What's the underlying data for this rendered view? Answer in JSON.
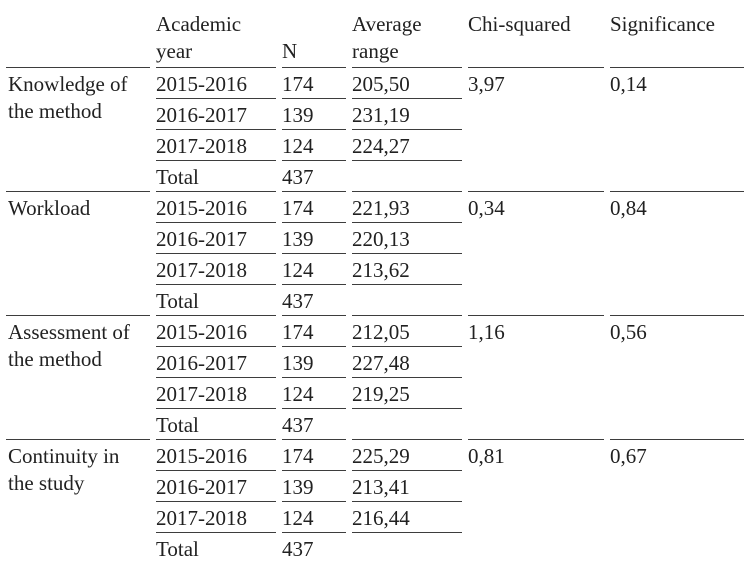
{
  "table": {
    "headers": {
      "row_label": "",
      "academic_year": "Academic year",
      "n": "N",
      "average_range": "Average range",
      "chi_squared": "Chi-squared",
      "significance": "Significance"
    },
    "sections": [
      {
        "label": "Knowledge of the method",
        "rows": [
          {
            "year": "2015-2016",
            "n": "174",
            "avg": "205,50"
          },
          {
            "year": "2016-2017",
            "n": "139",
            "avg": "231,19"
          },
          {
            "year": "2017-2018",
            "n": "124",
            "avg": "224,27"
          }
        ],
        "total_label": "Total",
        "total_n": "437",
        "chi": "3,97",
        "sig": "0,14"
      },
      {
        "label": "Workload",
        "rows": [
          {
            "year": "2015-2016",
            "n": "174",
            "avg": "221,93"
          },
          {
            "year": "2016-2017",
            "n": "139",
            "avg": "220,13"
          },
          {
            "year": "2017-2018",
            "n": "124",
            "avg": "213,62"
          }
        ],
        "total_label": "Total",
        "total_n": "437",
        "chi": "0,34",
        "sig": "0,84"
      },
      {
        "label": "Assessment of the method",
        "rows": [
          {
            "year": "2015-2016",
            "n": "174",
            "avg": "212,05"
          },
          {
            "year": "2016-2017",
            "n": "139",
            "avg": "227,48"
          },
          {
            "year": "2017-2018",
            "n": "124",
            "avg": "219,25"
          }
        ],
        "total_label": "Total",
        "total_n": "437",
        "chi": "1,16",
        "sig": "0,56"
      },
      {
        "label": "Continuity in the study",
        "rows": [
          {
            "year": "2015-2016",
            "n": "174",
            "avg": "225,29"
          },
          {
            "year": "2016-2017",
            "n": "139",
            "avg": "213,41"
          },
          {
            "year": "2017-2018",
            "n": "124",
            "avg": "216,44"
          }
        ],
        "total_label": "Total",
        "total_n": "437",
        "chi": "0,81",
        "sig": "0,67"
      }
    ]
  }
}
